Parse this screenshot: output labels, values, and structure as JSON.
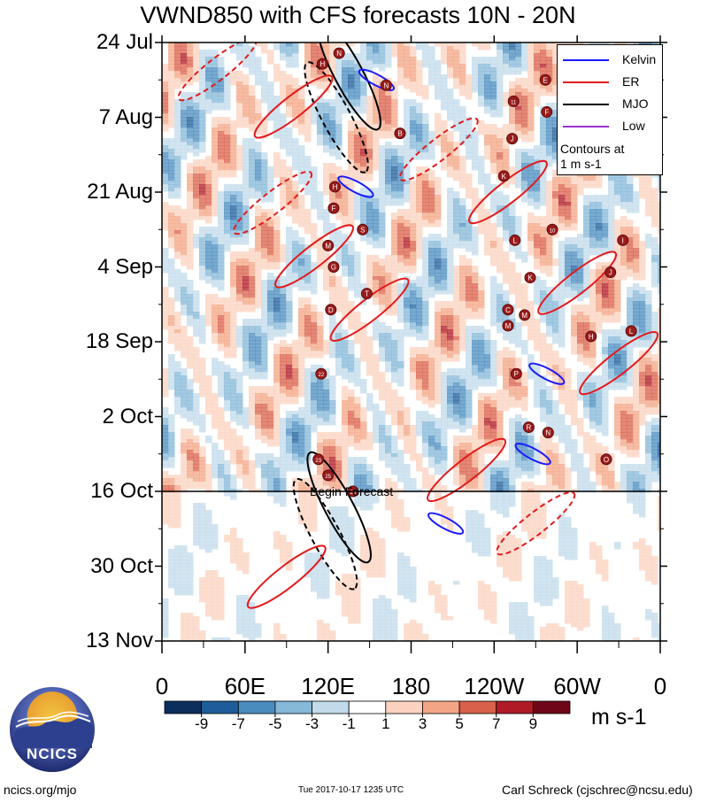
{
  "title": "VWND850 with CFS forecasts 10N - 20N",
  "chart_data": {
    "type": "heatmap",
    "title": "VWND850 with CFS forecasts 10N - 20N",
    "variable": "VWND850",
    "lat_band": "10N - 20N",
    "x_axis": {
      "tick_labels": [
        "0",
        "60E",
        "120E",
        "180",
        "120W",
        "60W",
        "0"
      ],
      "longitudes_deg_east": [
        0,
        60,
        120,
        180,
        240,
        300,
        360
      ]
    },
    "y_axis": {
      "tick_labels": [
        "24 Jul",
        "7 Aug",
        "21 Aug",
        "4 Sep",
        "18 Sep",
        "2 Oct",
        "16 Oct",
        "30 Oct",
        "13 Nov"
      ],
      "day_offsets": [
        0,
        14,
        28,
        42,
        56,
        70,
        84,
        98,
        112
      ],
      "reversed": false
    },
    "colorbar": {
      "tick_labels": [
        "-9",
        "-7",
        "-5",
        "-3",
        "-1",
        "1",
        "3",
        "5",
        "7",
        "9"
      ],
      "colors": [
        "#0b2e5c",
        "#1f5d9a",
        "#4b8cbf",
        "#86b8d8",
        "#c2dbeb",
        "#ffffff",
        "#fbd3c0",
        "#f3a685",
        "#d9604b",
        "#b01a26",
        "#6e0518"
      ],
      "units": "m s-1"
    },
    "forecast_start_day": 84,
    "forecast_label": "Begin Forecast",
    "legend": {
      "entries": [
        {
          "name": "Kelvin",
          "color": "#1a1aff"
        },
        {
          "name": "ER",
          "color": "#e31a1c"
        },
        {
          "name": "MJO",
          "color": "#000000"
        },
        {
          "name": "Low",
          "color": "#9b30d0"
        }
      ],
      "note_line1": "Contours at",
      "note_line2": "1 m s-1"
    },
    "filtered_wave_contours": [
      {
        "wave": "MJO",
        "lon": 128,
        "day": 87,
        "sign": 1
      },
      {
        "wave": "MJO",
        "lon": 118,
        "day": 92,
        "sign": -1
      },
      {
        "wave": "MJO",
        "lon": 135,
        "day": 6,
        "sign": 1
      },
      {
        "wave": "MJO",
        "lon": 126,
        "day": 14,
        "sign": -1
      },
      {
        "wave": "Kelvin",
        "lon": 155,
        "day": 7,
        "sign": 1
      },
      {
        "wave": "Kelvin",
        "lon": 205,
        "day": 90,
        "sign": 1
      },
      {
        "wave": "Kelvin",
        "lon": 268,
        "day": 77,
        "sign": 1
      },
      {
        "wave": "Kelvin",
        "lon": 140,
        "day": 27,
        "sign": 1
      },
      {
        "wave": "Kelvin",
        "lon": 278,
        "day": 62,
        "sign": 1
      },
      {
        "wave": "ER",
        "lon": 95,
        "day": 12,
        "sign": 1
      },
      {
        "wave": "ER",
        "lon": 110,
        "day": 40,
        "sign": 1
      },
      {
        "wave": "ER",
        "lon": 150,
        "day": 50,
        "sign": 1
      },
      {
        "wave": "ER",
        "lon": 250,
        "day": 28,
        "sign": 1
      },
      {
        "wave": "ER",
        "lon": 300,
        "day": 45,
        "sign": 1
      },
      {
        "wave": "ER",
        "lon": 330,
        "day": 60,
        "sign": 1
      },
      {
        "wave": "ER",
        "lon": 220,
        "day": 80,
        "sign": 1
      },
      {
        "wave": "ER",
        "lon": 90,
        "day": 100,
        "sign": 1
      },
      {
        "wave": "ER",
        "lon": 40,
        "day": 5,
        "sign": -1
      },
      {
        "wave": "ER",
        "lon": 80,
        "day": 30,
        "sign": -1
      },
      {
        "wave": "ER",
        "lon": 270,
        "day": 90,
        "sign": -1
      },
      {
        "wave": "ER",
        "lon": 200,
        "day": 20,
        "sign": -1
      }
    ],
    "storm_markers": [
      {
        "label": "N",
        "lon": 128,
        "day": 2
      },
      {
        "label": "H",
        "lon": 116,
        "day": 4
      },
      {
        "label": "N",
        "lon": 162,
        "day": 8
      },
      {
        "label": "B",
        "lon": 172,
        "day": 17
      },
      {
        "label": "E",
        "lon": 277,
        "day": 7
      },
      {
        "label": "11",
        "lon": 254,
        "day": 11
      },
      {
        "label": "F",
        "lon": 278,
        "day": 13
      },
      {
        "label": "J",
        "lon": 253,
        "day": 18
      },
      {
        "label": "K",
        "lon": 247,
        "day": 25
      },
      {
        "label": "H",
        "lon": 125,
        "day": 27
      },
      {
        "label": "F",
        "lon": 124,
        "day": 31
      },
      {
        "label": "S",
        "lon": 145,
        "day": 35
      },
      {
        "label": "M",
        "lon": 120,
        "day": 38
      },
      {
        "label": "G",
        "lon": 124,
        "day": 42
      },
      {
        "label": "10",
        "lon": 282,
        "day": 35
      },
      {
        "label": "L",
        "lon": 255,
        "day": 37
      },
      {
        "label": "I",
        "lon": 333,
        "day": 37
      },
      {
        "label": "J",
        "lon": 324,
        "day": 43
      },
      {
        "label": "K",
        "lon": 266,
        "day": 44
      },
      {
        "label": "T",
        "lon": 148,
        "day": 47
      },
      {
        "label": "D",
        "lon": 122,
        "day": 50
      },
      {
        "label": "C",
        "lon": 250,
        "day": 50
      },
      {
        "label": "M",
        "lon": 262,
        "day": 51
      },
      {
        "label": "M",
        "lon": 250,
        "day": 53
      },
      {
        "label": "L",
        "lon": 339,
        "day": 54
      },
      {
        "label": "H",
        "lon": 310,
        "day": 55
      },
      {
        "label": "22",
        "lon": 115,
        "day": 62
      },
      {
        "label": "P",
        "lon": 256,
        "day": 62
      },
      {
        "label": "R",
        "lon": 265,
        "day": 72
      },
      {
        "label": "N",
        "lon": 279,
        "day": 73
      },
      {
        "label": "23",
        "lon": 113,
        "day": 78
      },
      {
        "label": "O",
        "lon": 321,
        "day": 78
      },
      {
        "label": "25",
        "lon": 120,
        "day": 81
      },
      {
        "label": "26",
        "lon": 138,
        "day": 84
      }
    ]
  },
  "footer": {
    "left": "ncics.org/mjo",
    "middle": "Tue 2017-10-17 1235 UTC",
    "right": "Carl Schreck (cjschrec@ncsu.edu)"
  },
  "logo": {
    "text": "NCICS"
  }
}
